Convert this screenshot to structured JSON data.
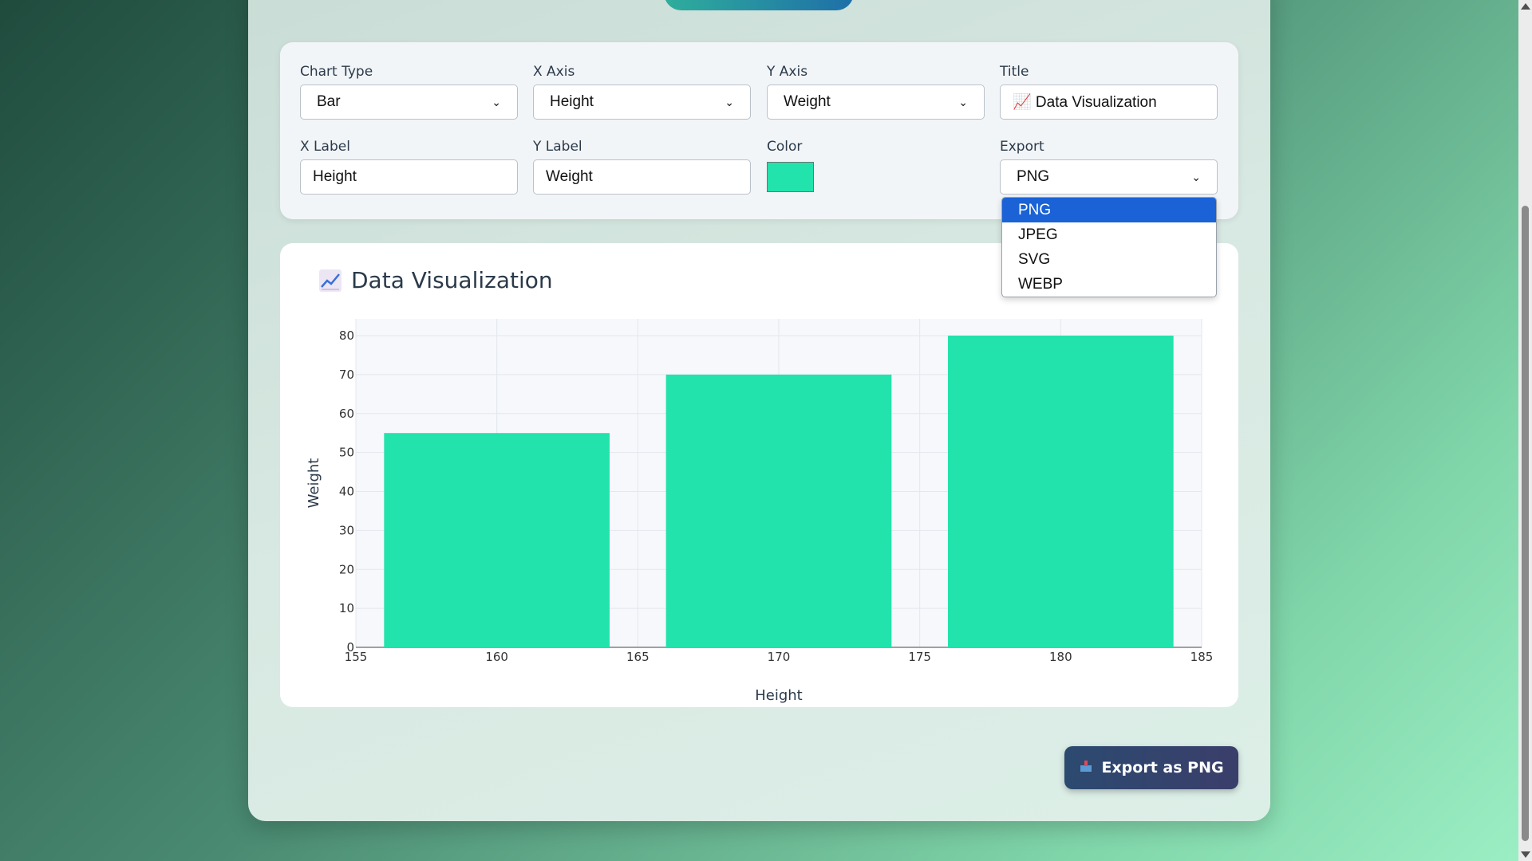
{
  "controls": {
    "chart_type": {
      "label": "Chart Type",
      "value": "Bar"
    },
    "x_axis": {
      "label": "X Axis",
      "value": "Height"
    },
    "y_axis": {
      "label": "Y Axis",
      "value": "Weight"
    },
    "title": {
      "label": "Title",
      "value": "📈 Data Visualization"
    },
    "x_label": {
      "label": "X Label",
      "value": "Height"
    },
    "y_label": {
      "label": "Y Label",
      "value": "Weight"
    },
    "color": {
      "label": "Color",
      "value": "#22e3ac"
    },
    "export": {
      "label": "Export",
      "value": "PNG",
      "options": [
        "PNG",
        "JPEG",
        "SVG",
        "WEBP"
      ],
      "selected": "PNG"
    }
  },
  "chart_card": {
    "title": "Data Visualization",
    "icon": "chart-increasing-icon"
  },
  "export_button": {
    "label": "Export as PNG",
    "icon": "outbox-tray-icon"
  },
  "colors": {
    "bar": "#22e3ac",
    "accent": "#1a62d6"
  },
  "chart_data": {
    "type": "bar",
    "x": [
      160,
      170,
      180
    ],
    "values": [
      55,
      70,
      80
    ],
    "xlabel": "Height",
    "ylabel": "Weight",
    "xlim": [
      155,
      185
    ],
    "ylim": [
      0,
      80
    ],
    "xticks": [
      155,
      160,
      165,
      170,
      175,
      180,
      185
    ],
    "yticks": [
      0,
      10,
      20,
      30,
      40,
      50,
      60,
      70,
      80
    ],
    "grid": true
  }
}
